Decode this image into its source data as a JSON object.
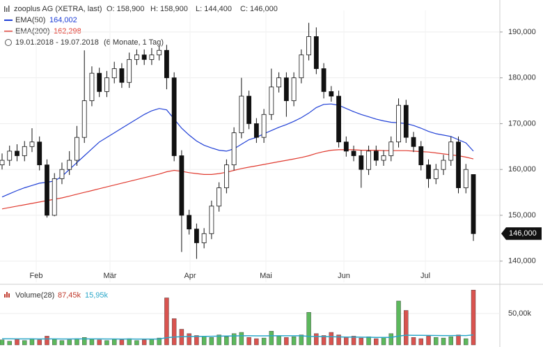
{
  "chart_data": {
    "type": "candlestick",
    "title": "zooplus AG (XETRA, last)",
    "ohlc_labels": [
      "O: 158,900",
      "H: 158,900",
      "L: 144,400",
      "C: 146,000"
    ],
    "range_label": "19.01.2018 - 19.07.2018",
    "range_note": "(6 Monate, 1 Tag)",
    "last_label": "146,000",
    "months": [
      "Feb",
      "Mär",
      "Apr",
      "Mai",
      "Jun",
      "Jul"
    ],
    "ylim": [
      135400,
      194700
    ],
    "yticks": [
      {
        "value": 140000,
        "label": "140,000"
      },
      {
        "value": 150000,
        "label": "150,000"
      },
      {
        "value": 160000,
        "label": "160,000"
      },
      {
        "value": 170000,
        "label": "170,000"
      },
      {
        "value": 180000,
        "label": "180,000"
      },
      {
        "value": 190000,
        "label": "190,000"
      }
    ],
    "grid": true,
    "up_color": "#ffffff",
    "down_color": "#111111",
    "candles": [
      [
        161000,
        163500,
        160000,
        162000
      ],
      [
        162000,
        165200,
        160800,
        164000
      ],
      [
        164000,
        165500,
        161800,
        163000
      ],
      [
        163000,
        166200,
        161800,
        165000
      ],
      [
        165000,
        169000,
        163800,
        166000
      ],
      [
        166000,
        167200,
        159800,
        161000
      ],
      [
        161000,
        162200,
        149500,
        150000
      ],
      [
        150000,
        159200,
        149800,
        158000
      ],
      [
        158000,
        161500,
        156800,
        160000
      ],
      [
        160000,
        164000,
        158800,
        162000
      ],
      [
        162000,
        169500,
        160800,
        167000
      ],
      [
        167000,
        186000,
        165800,
        175000
      ],
      [
        175000,
        182500,
        173800,
        181000
      ],
      [
        181000,
        182200,
        175800,
        177000
      ],
      [
        177000,
        181500,
        175800,
        180000
      ],
      [
        180000,
        183500,
        178800,
        182000
      ],
      [
        182000,
        183200,
        177800,
        179000
      ],
      [
        179000,
        185500,
        177800,
        184000
      ],
      [
        184000,
        186200,
        182800,
        185000
      ],
      [
        185000,
        186200,
        182800,
        184000
      ],
      [
        184000,
        186500,
        182800,
        185000
      ],
      [
        185000,
        187000,
        183800,
        186000
      ],
      [
        186000,
        187200,
        177500,
        180000
      ],
      [
        180000,
        181200,
        161800,
        163000
      ],
      [
        163000,
        164200,
        142000,
        150000
      ],
      [
        150000,
        151200,
        145800,
        147000
      ],
      [
        147000,
        148200,
        140500,
        144000
      ],
      [
        144000,
        147200,
        142800,
        146000
      ],
      [
        146000,
        153200,
        144800,
        152000
      ],
      [
        152000,
        157200,
        150800,
        156000
      ],
      [
        156000,
        162200,
        154800,
        161000
      ],
      [
        161000,
        169200,
        159800,
        168000
      ],
      [
        168000,
        180000,
        166800,
        176000
      ],
      [
        176000,
        177200,
        168800,
        170000
      ],
      [
        170000,
        171200,
        165800,
        167000
      ],
      [
        167000,
        173200,
        165800,
        172000
      ],
      [
        172000,
        182000,
        170800,
        178000
      ],
      [
        178000,
        181200,
        176800,
        180000
      ],
      [
        180000,
        181200,
        171500,
        175000
      ],
      [
        175000,
        181200,
        173800,
        180000
      ],
      [
        180000,
        186200,
        178800,
        185000
      ],
      [
        185000,
        192000,
        183800,
        189000
      ],
      [
        189000,
        191000,
        180800,
        182000
      ],
      [
        182000,
        183200,
        175500,
        177000
      ],
      [
        177000,
        178200,
        174800,
        176000
      ],
      [
        176000,
        177200,
        164800,
        166000
      ],
      [
        166000,
        167200,
        162800,
        164000
      ],
      [
        164000,
        165200,
        161800,
        163000
      ],
      [
        163000,
        164200,
        156000,
        160000
      ],
      [
        160000,
        165200,
        158800,
        164000
      ],
      [
        164000,
        165200,
        160800,
        162000
      ],
      [
        162000,
        164200,
        160800,
        163000
      ],
      [
        163000,
        167200,
        161800,
        166000
      ],
      [
        166000,
        175500,
        164800,
        174000
      ],
      [
        174000,
        175200,
        165800,
        167000
      ],
      [
        167000,
        168200,
        163800,
        165000
      ],
      [
        165000,
        166200,
        159800,
        161000
      ],
      [
        161000,
        162200,
        156000,
        158000
      ],
      [
        158000,
        161200,
        156800,
        160000
      ],
      [
        160000,
        163200,
        158800,
        162000
      ],
      [
        162000,
        167200,
        160800,
        166000
      ],
      [
        166000,
        167200,
        154800,
        156000
      ],
      [
        156000,
        161200,
        154800,
        160000
      ],
      [
        158900,
        158900,
        144400,
        146000
      ]
    ],
    "series": [
      {
        "name": "EMA(50)",
        "value_label": "164,002",
        "color": "#1f3fd6",
        "values": [
          154000,
          154700,
          155400,
          156000,
          156500,
          157000,
          157200,
          157500,
          158500,
          160000,
          161500,
          163000,
          164500,
          166000,
          167000,
          168000,
          169000,
          170000,
          171000,
          172000,
          172800,
          173300,
          173000,
          171000,
          169000,
          167500,
          166200,
          165300,
          164700,
          164200,
          164000,
          164500,
          165500,
          166500,
          167000,
          167800,
          168500,
          169200,
          169800,
          170500,
          171300,
          172300,
          173500,
          174200,
          174300,
          174000,
          173300,
          172600,
          172000,
          171500,
          171000,
          170600,
          170300,
          170200,
          170000,
          169600,
          169000,
          168300,
          167800,
          167500,
          167200,
          166500,
          165800,
          164000
        ]
      },
      {
        "name": "EMA(200)",
        "value_label": "162,298",
        "color": "#e03a2f",
        "values": [
          151400,
          151700,
          152000,
          152300,
          152600,
          152900,
          153200,
          153500,
          153800,
          154200,
          154600,
          155000,
          155400,
          155800,
          156200,
          156600,
          157000,
          157400,
          157800,
          158200,
          158600,
          159000,
          159500,
          159800,
          159600,
          159300,
          159100,
          158900,
          158900,
          159100,
          159400,
          159800,
          160200,
          160500,
          160800,
          161100,
          161400,
          161700,
          162000,
          162300,
          162600,
          163000,
          163500,
          163900,
          164200,
          164300,
          164300,
          164300,
          164200,
          164200,
          164200,
          164100,
          164100,
          164100,
          164100,
          164000,
          163900,
          163800,
          163600,
          163400,
          163200,
          163000,
          162700,
          162300
        ]
      }
    ],
    "volume": {
      "name": "Volume(28)",
      "value_label": "87,45k",
      "avg_label": "15,95k",
      "up_color": "#5cb85c",
      "down_color": "#d9534f",
      "avg_color": "#2aa7c9",
      "ylim": [
        0,
        94400
      ],
      "yticks": [
        {
          "value": 50000,
          "label": "50,00k"
        }
      ],
      "values": [
        8000,
        6000,
        9000,
        7000,
        10000,
        8000,
        14000,
        9000,
        7000,
        8000,
        10000,
        12000,
        9000,
        8000,
        7000,
        9000,
        8000,
        10000,
        7000,
        8000,
        9000,
        11000,
        75000,
        42000,
        25000,
        18000,
        15000,
        14000,
        12000,
        16000,
        13000,
        18000,
        20000,
        12000,
        10000,
        11000,
        22000,
        14000,
        12000,
        13000,
        16000,
        52000,
        18000,
        15000,
        20000,
        16000,
        12000,
        14000,
        11000,
        13000,
        10000,
        12000,
        18000,
        70000,
        55000,
        12000,
        10000,
        14000,
        12000,
        11000,
        13000,
        16000,
        10000,
        87450
      ],
      "avg": [
        9800,
        9700,
        9600,
        9500,
        9500,
        9400,
        9600,
        9500,
        9400,
        9400,
        9500,
        9600,
        9600,
        9500,
        9400,
        9400,
        9300,
        9400,
        9300,
        9300,
        9300,
        9400,
        11500,
        12500,
        13000,
        13300,
        13500,
        13700,
        13800,
        14000,
        14100,
        14300,
        14500,
        14500,
        14400,
        14400,
        14600,
        14600,
        14500,
        14500,
        14600,
        13500,
        13400,
        13300,
        13000,
        12800,
        12600,
        12500,
        12300,
        12200,
        12000,
        11900,
        12000,
        14000,
        15500,
        15300,
        15200,
        15100,
        15000,
        14900,
        14900,
        15000,
        14900,
        15950
      ]
    }
  }
}
